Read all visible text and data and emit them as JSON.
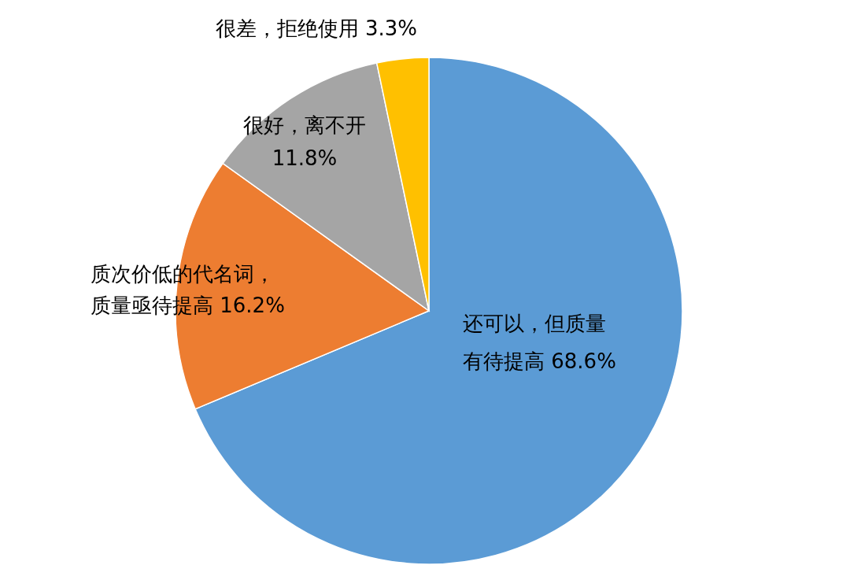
{
  "chart_data": {
    "type": "pie",
    "categories": [
      "还可以，但质量有待提高",
      "质次价低的代名词，质量亟待提高",
      "很好，离不开",
      "很差，拒绝使用"
    ],
    "values": [
      68.6,
      16.2,
      11.8,
      3.3
    ],
    "colors": [
      "#5b9bd5",
      "#ed7d31",
      "#a5a5a5",
      "#ffc000"
    ],
    "value_labels": [
      "68.6%",
      "16.2%",
      "11.8%",
      "3.3%"
    ]
  }
}
